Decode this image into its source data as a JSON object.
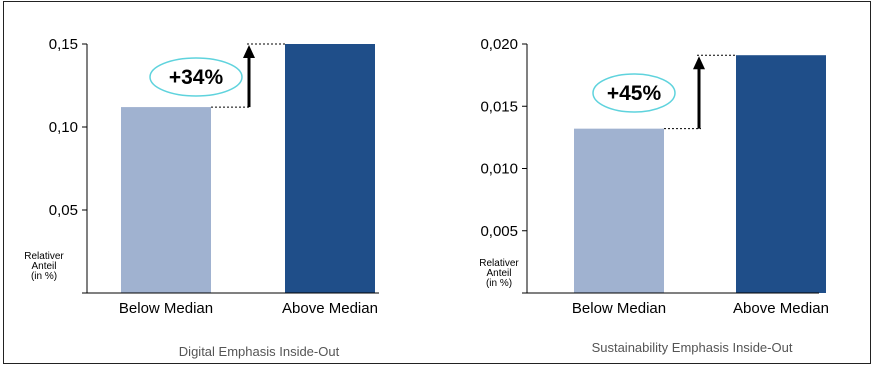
{
  "chart_data": [
    {
      "type": "bar",
      "categories": [
        "Below Median",
        "Above Median"
      ],
      "values": [
        0.112,
        0.15
      ],
      "yticks": [
        "0,05",
        "0,10",
        "0,15"
      ],
      "ytick_values": [
        0.05,
        0.1,
        0.15
      ],
      "ylim": [
        0,
        0.15
      ],
      "ylabel_lines": [
        "Relativer",
        "Anteil",
        "(in %)"
      ],
      "annotation": "+34%",
      "caption": "Digital Emphasis Inside-Out",
      "colors": [
        "#a0b2d0",
        "#1f4e89"
      ],
      "grid": false
    },
    {
      "type": "bar",
      "categories": [
        "Below Median",
        "Above Median"
      ],
      "values": [
        0.0132,
        0.0191
      ],
      "yticks": [
        "0,005",
        "0,010",
        "0,015",
        "0,020"
      ],
      "ytick_values": [
        0.005,
        0.01,
        0.015,
        0.02
      ],
      "ylim": [
        0,
        0.02
      ],
      "ylabel_lines": [
        "Relativer",
        "Anteil",
        "(in %)"
      ],
      "annotation": "+45%",
      "caption": "Sustainability Emphasis Inside-Out",
      "colors": [
        "#a0b2d0",
        "#1f4e89"
      ],
      "grid": false
    }
  ],
  "accent": {
    "badge_border": "#5fd3dd",
    "arrow": "#000000"
  }
}
